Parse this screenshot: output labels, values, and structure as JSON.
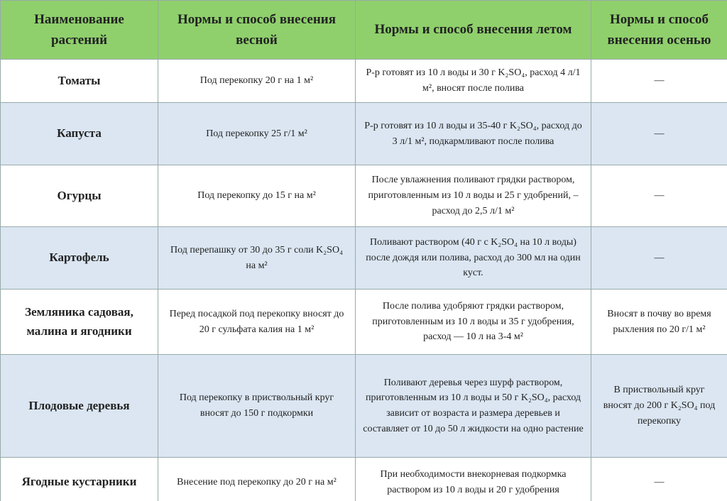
{
  "table": {
    "header": [
      "Наименование растений",
      "Нормы и способ внесения весной",
      "Нормы и способ внесения летом",
      "Нормы и способ внесения осенью"
    ],
    "rows": [
      [
        "Томаты",
        "Под перекопку 20 г на 1 м²",
        "Р-р готовят из 10 л воды и 30 г K₂SO₄, расход 4 л/1 м², вносят после полива",
        "—"
      ],
      [
        "Капуста",
        "Под перекопку 25 г/1 м²",
        "Р-р готовят из 10 л воды и 35-40 г K₂SO₄, расход до 3 л/1 м², подкармливают после полива",
        "—"
      ],
      [
        "Огурцы",
        "Под перекопку до 15 г на м²",
        "После увлажнения поливают грядки раствором, приготовленным из 10 л воды и 25 г удобрений, – расход до 2,5 л/1 м²",
        "—"
      ],
      [
        "Картофель",
        "Под перепашку от 30 до 35 г соли K₂SO₄ на м²",
        "Поливают раствором (40 г с K₂SO₄ на 10 л воды) после дождя или полива, расход до 300 мл на один куст.",
        "—"
      ],
      [
        "Земляника садовая, малина и ягодники",
        "Перед посадкой под перекопку вносят до 20 г сульфата калия на 1 м²",
        "После полива удобряют грядки раствором, приготовленным из 10 л воды и 35 г удобрения, расход — 10 л на 3-4 м²",
        "Вносят в почву во время рыхления по 20 г/1 м²"
      ],
      [
        "Плодовые деревья",
        "Под перекопку в приствольный круг вносят до 150 г подкормки",
        "Поливают деревья через шурф раствором, приготовленным из 10 л воды и 50 г K₂SO₄, расход зависит от возраста и размера деревьев и составляет от 10 до 50 л жидкости на одно растение",
        "В приствольный круг вносят до 200 г K₂SO₄ под перекопку"
      ],
      [
        "Ягодные кустарники",
        "Внесение под перекопку до 20 г на м²",
        "При необходимости внекорневая подкормка раствором из 10 л воды и 20 г удобрения",
        "—"
      ]
    ]
  }
}
